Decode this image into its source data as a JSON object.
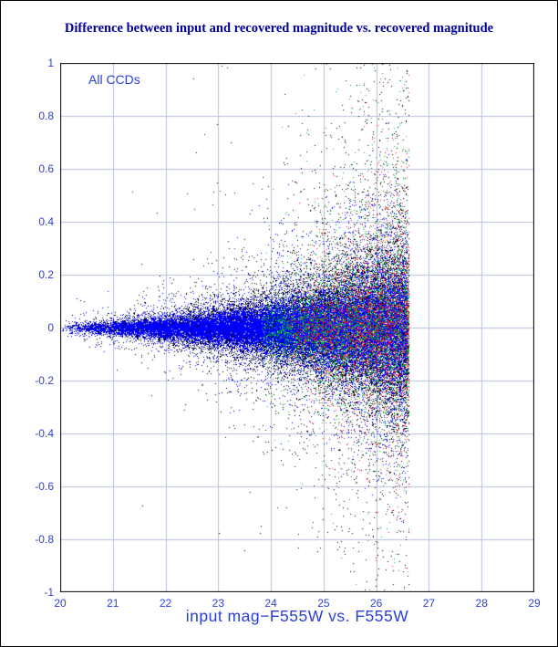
{
  "page": {
    "background": "#ffffff",
    "border_color": "#000000"
  },
  "chart_data": {
    "type": "scatter",
    "title": "Difference between input and recovered magnitude vs. recovered magnitude",
    "title_color": "#000099",
    "xlabel": "input mag−F555W vs. F555W",
    "ylabel": "",
    "annotation": "All CCDs",
    "axis_color": "#2b3fd6",
    "grid_color": "#b7c0da",
    "frame_color": "#000000",
    "grid": true,
    "xlim": [
      20,
      29
    ],
    "ylim": [
      -1,
      1
    ],
    "x_ticks": [
      20,
      21,
      22,
      23,
      24,
      25,
      26,
      27,
      28,
      29
    ],
    "y_ticks": [
      1,
      0.8,
      0.6,
      0.4,
      0.2,
      0,
      -0.2,
      -0.4,
      -0.6,
      -0.8,
      -1
    ],
    "description": "Dense horizontal band of points centered on y=0 at x=20 that fans out with increasing magnitude, becoming a broad dense column between x=25 and x=26.5 spanning roughly -0.5 to +0.6, with sparse outliers reaching +1 and -0.9; sharp completeness cutoff near x=26.6; no points beyond.",
    "seed": 20240715,
    "series": [
      {
        "name": "black-points",
        "color": "#000000",
        "n": 14000,
        "x_min": 20.0,
        "x_max": 26.62,
        "x_pow": 0.45,
        "sigma0": 0.013,
        "tau": 2.35,
        "sigma_cap": 0.2,
        "wide_frac": 0.18,
        "wide_mult": 2.8,
        "out_base": 0.004,
        "out_scale": 0.1,
        "out_pow": 3.2,
        "out_top": 1.0,
        "out_bot": -0.95,
        "pos_frac": 0.62
      },
      {
        "name": "blue-points",
        "color": "#0000ff",
        "n": 30000,
        "x_min": 20.0,
        "x_max": 26.58,
        "x_pow": 0.5,
        "sigma0": 0.009,
        "tau": 2.5,
        "sigma_cap": 0.12,
        "wide_frac": 0.15,
        "wide_mult": 2.5,
        "out_base": 0.001,
        "out_scale": 0.03,
        "out_pow": 3.5,
        "out_top": 0.55,
        "out_bot": -0.5,
        "pos_frac": 0.6
      },
      {
        "name": "green-points",
        "color": "#00b43c",
        "n": 5200,
        "x_min": 23.8,
        "x_max": 26.62,
        "x_pow": 0.65,
        "sigma0": 0.01,
        "tau": 2.3,
        "sigma_cap": 0.18,
        "wide_frac": 0.2,
        "wide_mult": 2.6,
        "out_base": 0.003,
        "out_scale": 0.09,
        "out_pow": 3.0,
        "out_top": 1.0,
        "out_bot": -0.6,
        "pos_frac": 0.7
      },
      {
        "name": "red-points",
        "color": "#ee2238",
        "n": 3600,
        "x_min": 24.3,
        "x_max": 26.62,
        "x_pow": 0.65,
        "sigma0": 0.01,
        "tau": 2.3,
        "sigma_cap": 0.17,
        "wide_frac": 0.2,
        "wide_mult": 2.6,
        "out_base": 0.003,
        "out_scale": 0.08,
        "out_pow": 3.0,
        "out_top": 0.95,
        "out_bot": -0.6,
        "pos_frac": 0.65
      }
    ]
  }
}
